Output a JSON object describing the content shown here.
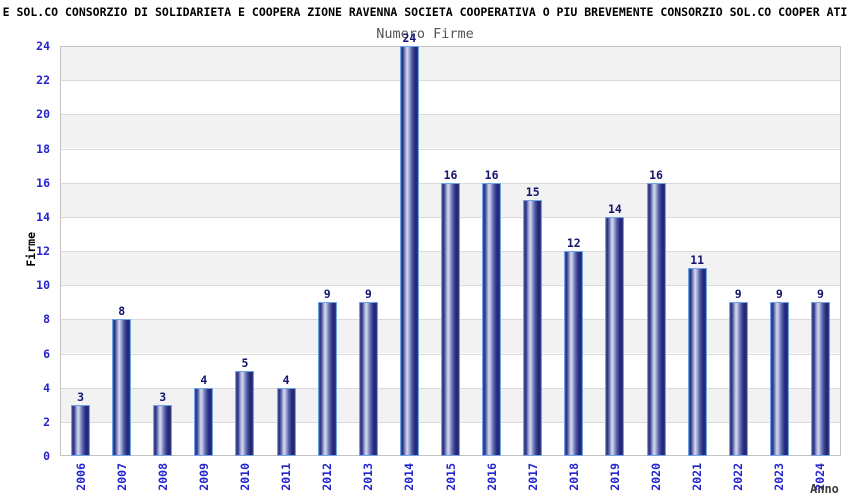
{
  "chart_data": {
    "type": "bar",
    "title": "E SOL.CO CONSORZIO DI SOLIDARIETA E COOPERA ZIONE RAVENNA SOCIETA COOPERATIVA O PIU BREVEMENTE CONSORZIO SOL.CO COOPER ATI",
    "subtitle": "Numero Firme",
    "xlabel": "Anno",
    "ylabel": "Firme",
    "categories": [
      "2006",
      "2007",
      "2008",
      "2009",
      "2010",
      "2011",
      "2012",
      "2013",
      "2014",
      "2015",
      "2016",
      "2017",
      "2018",
      "2019",
      "2020",
      "2021",
      "2022",
      "2023",
      "2024"
    ],
    "values": [
      3,
      8,
      3,
      4,
      5,
      4,
      9,
      9,
      24,
      16,
      16,
      15,
      12,
      14,
      16,
      11,
      9,
      9,
      9
    ],
    "ylim": [
      0,
      24
    ],
    "ytick_step": 2,
    "grid": "horizontal-bands",
    "legend": "none",
    "colors": {
      "tick_label": "#2424cf",
      "value_label": "#14146e",
      "bar_dark": "#1e2476",
      "bar_highlight": "#d6dbf0",
      "bar_border": "#6fa3e3",
      "band": "#f2f2f2",
      "gridline": "#dadada",
      "plot_border": "#c3c3c3",
      "title_color": "#000000",
      "subtitle_color": "#545454",
      "axis_title_color": "#3c3c3c"
    }
  }
}
